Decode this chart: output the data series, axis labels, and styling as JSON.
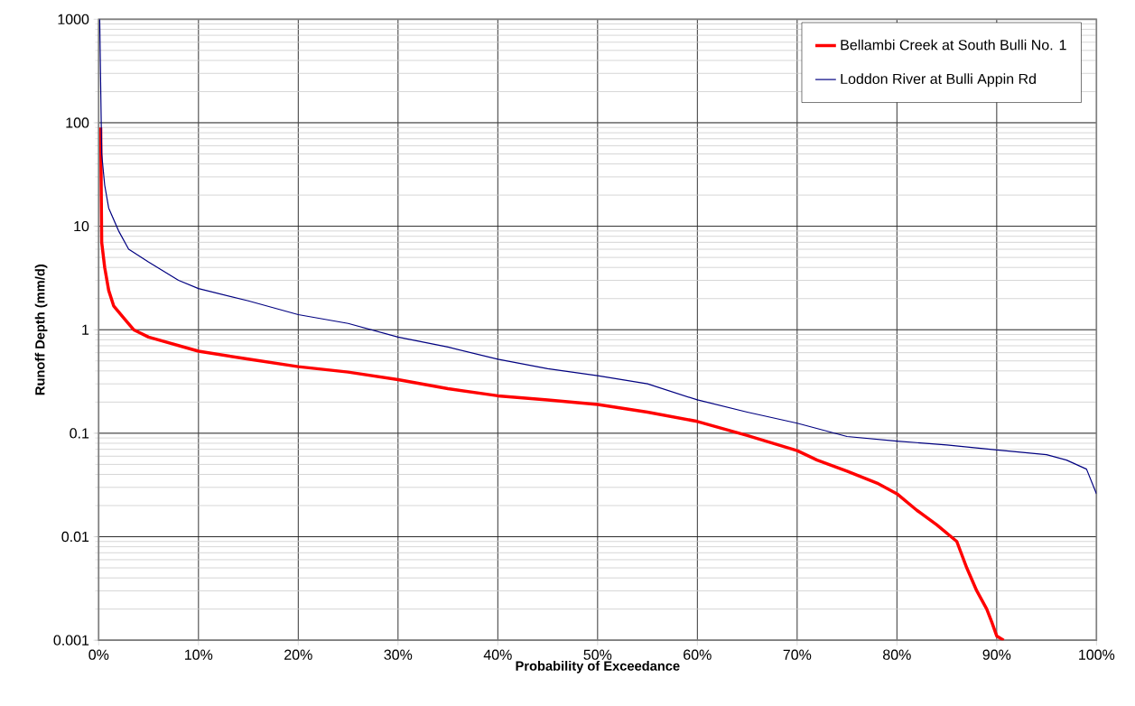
{
  "chart_data": {
    "type": "line",
    "xlabel": "Probability of Exceedance",
    "ylabel": "Runoff Depth (mm/d)",
    "log": "y",
    "grid": true,
    "legend": "top right",
    "marker": "none",
    "line_style": "solid",
    "xlim": [
      0,
      100
    ],
    "ylim": [
      0.001,
      1000
    ],
    "xticks": [
      {
        "value": 0,
        "label": "0%"
      },
      {
        "value": 10,
        "label": "10%"
      },
      {
        "value": 20,
        "label": "20%"
      },
      {
        "value": 30,
        "label": "30%"
      },
      {
        "value": 40,
        "label": "40%"
      },
      {
        "value": 50,
        "label": "50%"
      },
      {
        "value": 60,
        "label": "60%"
      },
      {
        "value": 70,
        "label": "70%"
      },
      {
        "value": 80,
        "label": "80%"
      },
      {
        "value": 90,
        "label": "90%"
      },
      {
        "value": 100,
        "label": "100%"
      }
    ],
    "yticks": [
      0.001,
      0.01,
      0.1,
      1,
      10,
      100,
      1000
    ],
    "series": [
      {
        "name": "Bellambi Creek at South Bulli No. 1",
        "color": "#ff0000",
        "x": [
          0.2,
          0.3,
          0.6,
          1,
          1.5,
          2.5,
          3.5,
          5,
          10,
          15,
          20,
          25,
          30,
          35,
          40,
          45,
          50,
          55,
          60,
          65,
          70,
          72,
          75,
          78,
          80,
          82,
          84,
          86,
          87,
          88,
          89,
          89.5,
          90,
          90.7
        ],
        "values": [
          90,
          7,
          4,
          2.4,
          1.7,
          1.3,
          1.0,
          0.85,
          0.62,
          0.52,
          0.44,
          0.39,
          0.33,
          0.27,
          0.23,
          0.21,
          0.19,
          0.16,
          0.13,
          0.095,
          0.068,
          0.055,
          0.043,
          0.033,
          0.026,
          0.018,
          0.013,
          0.009,
          0.005,
          0.003,
          0.002,
          0.0015,
          0.0011,
          0.001
        ]
      },
      {
        "name": "Loddon River at Bulli Appin Rd",
        "color": "#000080",
        "x": [
          0.1,
          0.3,
          0.6,
          1,
          2,
          3,
          5,
          8,
          10,
          15,
          20,
          25,
          30,
          35,
          40,
          45,
          50,
          55,
          60,
          65,
          70,
          75,
          80,
          85,
          90,
          95,
          97,
          99,
          100
        ],
        "values": [
          1000,
          50,
          25,
          15,
          9,
          6,
          4.5,
          3,
          2.5,
          1.9,
          1.4,
          1.15,
          0.85,
          0.68,
          0.52,
          0.42,
          0.36,
          0.3,
          0.21,
          0.16,
          0.125,
          0.093,
          0.084,
          0.077,
          0.069,
          0.062,
          0.055,
          0.045,
          0.026
        ]
      }
    ]
  }
}
